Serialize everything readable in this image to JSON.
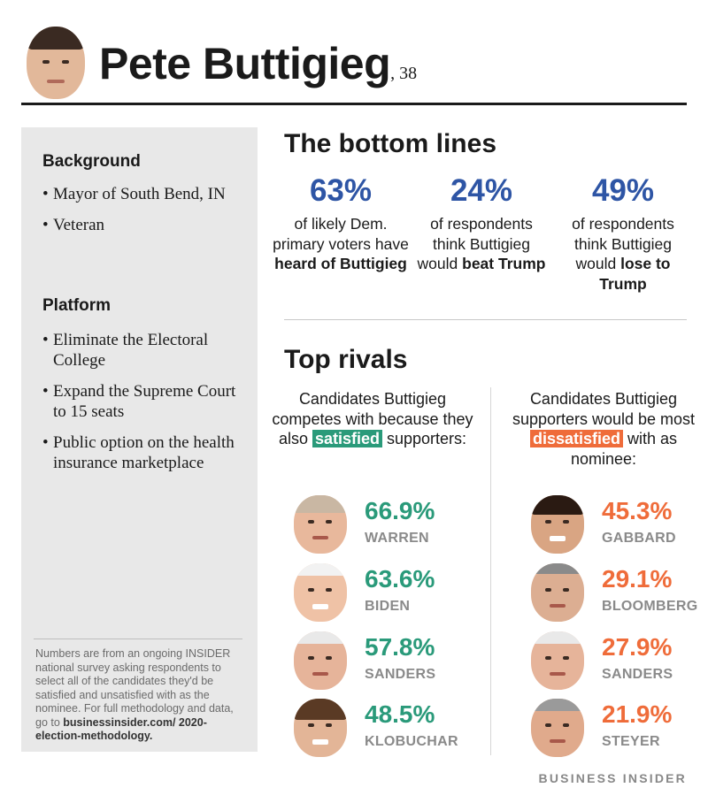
{
  "header": {
    "name": "Pete Buttigieg",
    "age": ", 38"
  },
  "sidebar": {
    "background_heading": "Background",
    "background_items": [
      "Mayor of South Bend, IN",
      "Veteran"
    ],
    "platform_heading": "Platform",
    "platform_items": [
      "Eliminate the Electoral College",
      "Expand the Supreme Court to 15 seats",
      "Public option on the health insurance marketplace"
    ],
    "note_text": "Numbers are from an ongoing INSIDER national survey asking respondents to select all of the candidates they'd be satisfied and unsatisfied with as the nominee. For full methodology and data, go to ",
    "note_link": "businessinsider.com/ 2020-election-methodology."
  },
  "bottom_lines": {
    "title": "The bottom lines",
    "stats": [
      {
        "value": "63%",
        "text_before": "of likely Dem. primary voters have ",
        "bold": "heard of Buttigieg",
        "text_after": ""
      },
      {
        "value": "24%",
        "text_before": "of respondents think Buttigieg would ",
        "bold": "beat Trump",
        "text_after": ""
      },
      {
        "value": "49%",
        "text_before": "of respondents think Buttigieg would ",
        "bold": "lose to Trump",
        "text_after": ""
      }
    ]
  },
  "top_rivals": {
    "title": "Top rivals",
    "satisfied_head": {
      "before": "Candidates Buttigieg competes with because they also ",
      "highlight": "satisfied",
      "after": " supporters:"
    },
    "dissatisfied_head": {
      "before": "Candidates Buttigieg supporters would be most ",
      "highlight": "dissatisfied",
      "after": " with as nominee:"
    },
    "satisfied": [
      {
        "pct": "66.9%",
        "name": "WARREN"
      },
      {
        "pct": "63.6%",
        "name": "BIDEN"
      },
      {
        "pct": "57.8%",
        "name": "SANDERS"
      },
      {
        "pct": "48.5%",
        "name": "KLOBUCHAR"
      }
    ],
    "dissatisfied": [
      {
        "pct": "45.3%",
        "name": "GABBARD"
      },
      {
        "pct": "29.1%",
        "name": "BLOOMBERG"
      },
      {
        "pct": "27.9%",
        "name": "SANDERS"
      },
      {
        "pct": "21.9%",
        "name": "STEYER"
      }
    ]
  },
  "footer": {
    "brand": "BUSINESS INSIDER"
  },
  "colors": {
    "blue": "#2e55a5",
    "green": "#2a9a7a",
    "orange": "#ef6c3a",
    "panel": "#e8e8e8"
  }
}
